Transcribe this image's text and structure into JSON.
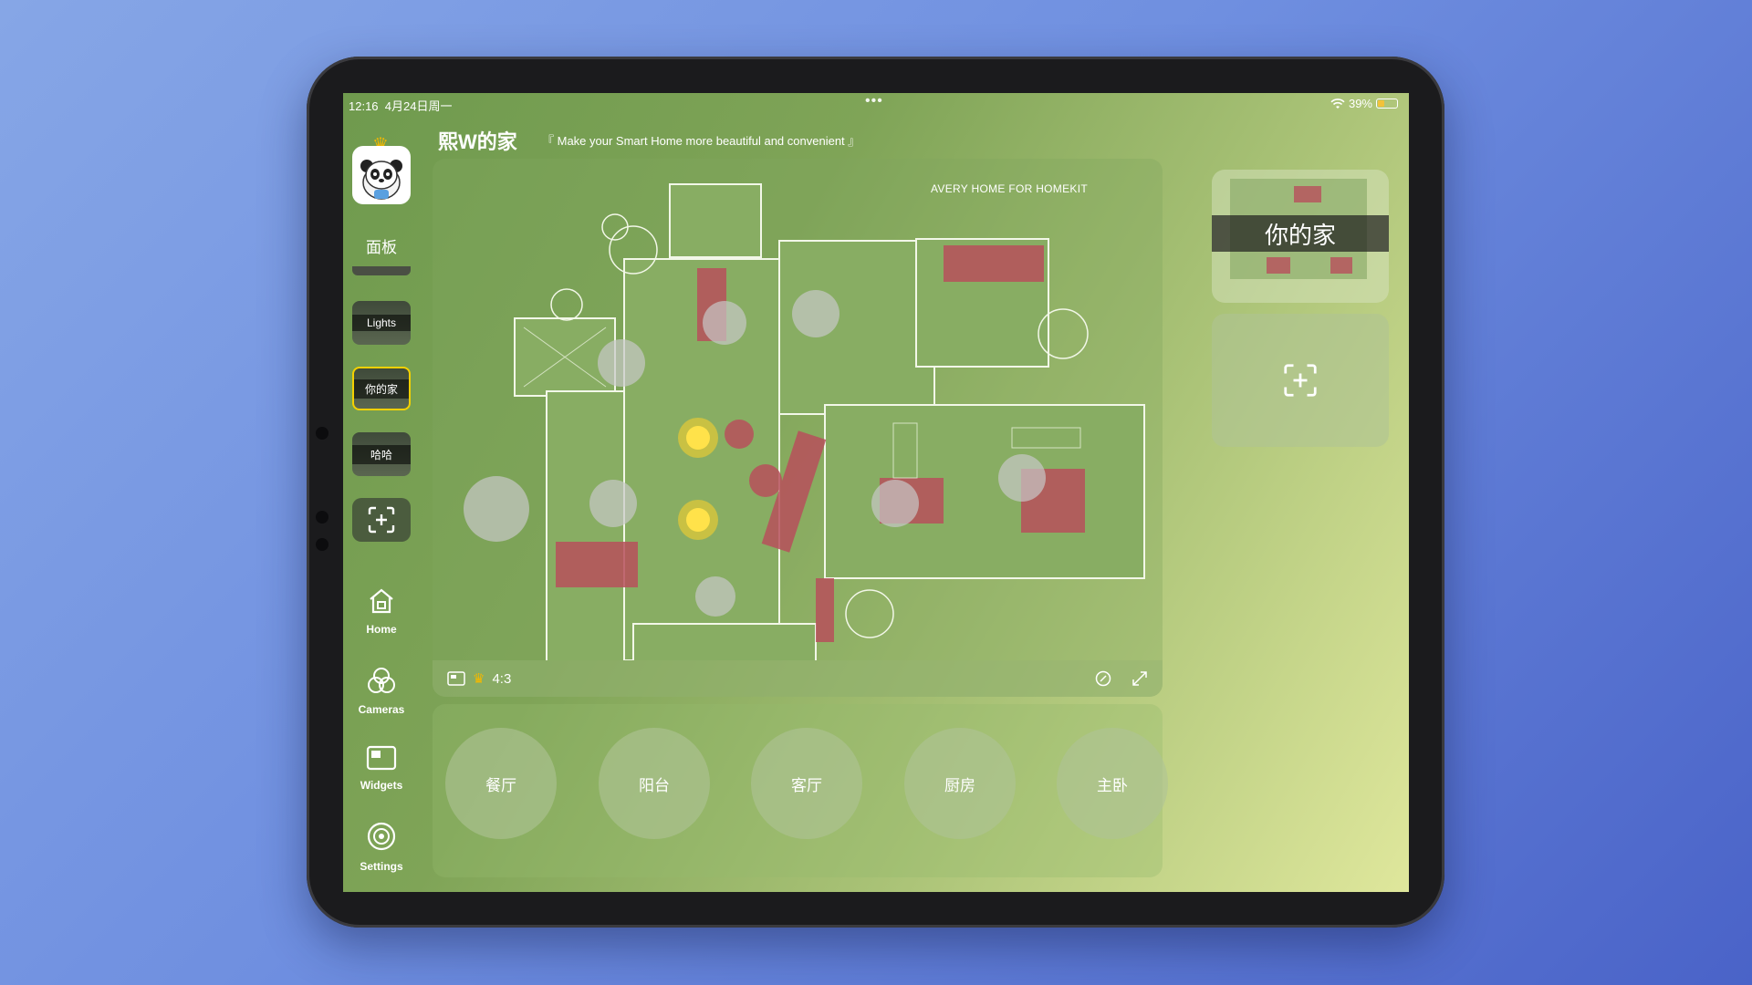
{
  "status": {
    "time": "12:16",
    "date": "4月24日周一",
    "battery": "39%",
    "battery_level": 0.39,
    "icons": [
      "wifi-icon",
      "battery-icon"
    ]
  },
  "header": {
    "home_name": "熙W的家",
    "slogan": "『 Make your Smart Home more beautiful and convenient 』"
  },
  "sidebar": {
    "panel_label": "面板",
    "boards": [
      {
        "label": "Lights",
        "active": false
      },
      {
        "label": "你的家",
        "active": true
      },
      {
        "label": "哈哈",
        "active": false
      }
    ],
    "nav": [
      {
        "label": "Home",
        "icon": "home-icon"
      },
      {
        "label": "Cameras",
        "icon": "cameras-icon"
      },
      {
        "label": "Widgets",
        "icon": "widgets-icon"
      },
      {
        "label": "Settings",
        "icon": "settings-icon"
      }
    ]
  },
  "plan": {
    "brand": "AVERY HOME FOR HOMEKIT",
    "ratio": "4:3"
  },
  "rooms": [
    "餐厅",
    "阳台",
    "客厅",
    "厨房",
    "主卧"
  ],
  "right": {
    "board_title": "你的家"
  },
  "colors": {
    "accent": "#f5d000",
    "bulb_on": "#ffd12a",
    "room_red": "#b8505c"
  }
}
